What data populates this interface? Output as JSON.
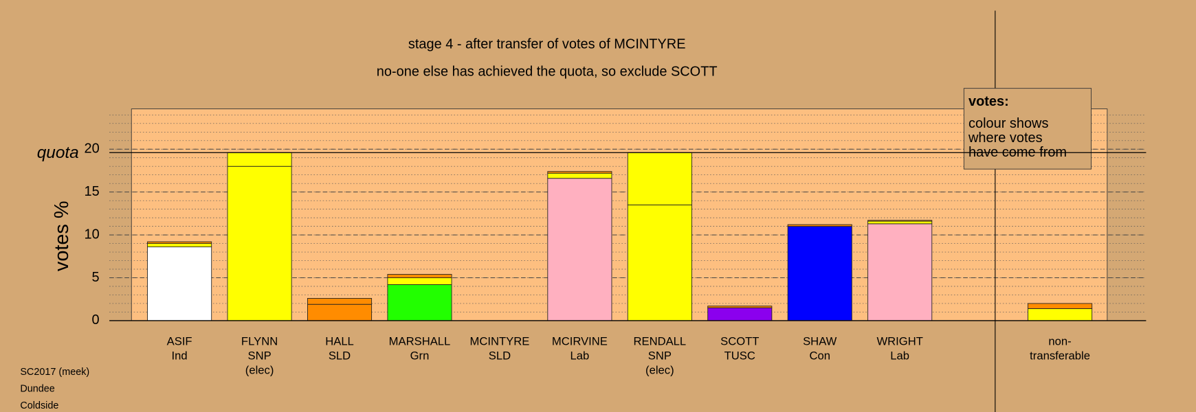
{
  "chart_data": {
    "type": "bar",
    "stacked": true,
    "title": "stage 4 - after transfer of votes of MCINTYRE",
    "subtitle": "no-one else has achieved the quota, so exclude SCOTT",
    "y_label": "votes %",
    "categories": [
      [
        "ASIF",
        "Ind"
      ],
      [
        "FLYNN",
        "SNP",
        "(elec)"
      ],
      [
        "HALL",
        "SLD"
      ],
      [
        "MARSHALL",
        "Grn"
      ],
      [
        "MCINTYRE",
        "SLD"
      ],
      [
        "MCIRVINE",
        "Lab"
      ],
      [
        "RENDALL",
        "SNP",
        "(elec)"
      ],
      [
        "SCOTT",
        "TUSC"
      ],
      [
        "SHAW",
        "Con"
      ],
      [
        "WRIGHT",
        "Lab"
      ],
      [
        "non-",
        "transferable"
      ]
    ],
    "series": [
      {
        "colors": [
          "#ffffff",
          "#ffff00",
          "#ff8c00",
          "#22ff00",
          "#ff8c00",
          "#ffb0c0",
          "#ffff00",
          "#8b00ee",
          "#0000ff",
          "#ffb0c0",
          "#ffff00"
        ],
        "values": [
          8.6,
          18.0,
          1.9,
          4.2,
          0,
          16.6,
          13.5,
          1.5,
          11.0,
          11.3,
          0
        ]
      },
      {
        "color": "#ffff00",
        "values": [
          0.4,
          1.6,
          0.0,
          0.8,
          0,
          0.6,
          6.1,
          0.0,
          0.0,
          0.3,
          1.4
        ]
      },
      {
        "color": "#ff8c00",
        "values": [
          0.2,
          0,
          0.7,
          0.4,
          0,
          0.2,
          0,
          0.2,
          0.2,
          0.1,
          0.6
        ]
      }
    ],
    "ylim": [
      0,
      24.7
    ],
    "yticks": [
      0,
      5,
      10,
      15,
      20
    ],
    "minor_step": 1,
    "quota": {
      "value": 19.6,
      "label": "quota"
    },
    "legend": {
      "title": "votes:",
      "lines": [
        "colour shows",
        "where votes",
        "have come from"
      ]
    },
    "footer": [
      "SC2017 (meek)",
      "Dundee",
      "Coldside"
    ]
  }
}
